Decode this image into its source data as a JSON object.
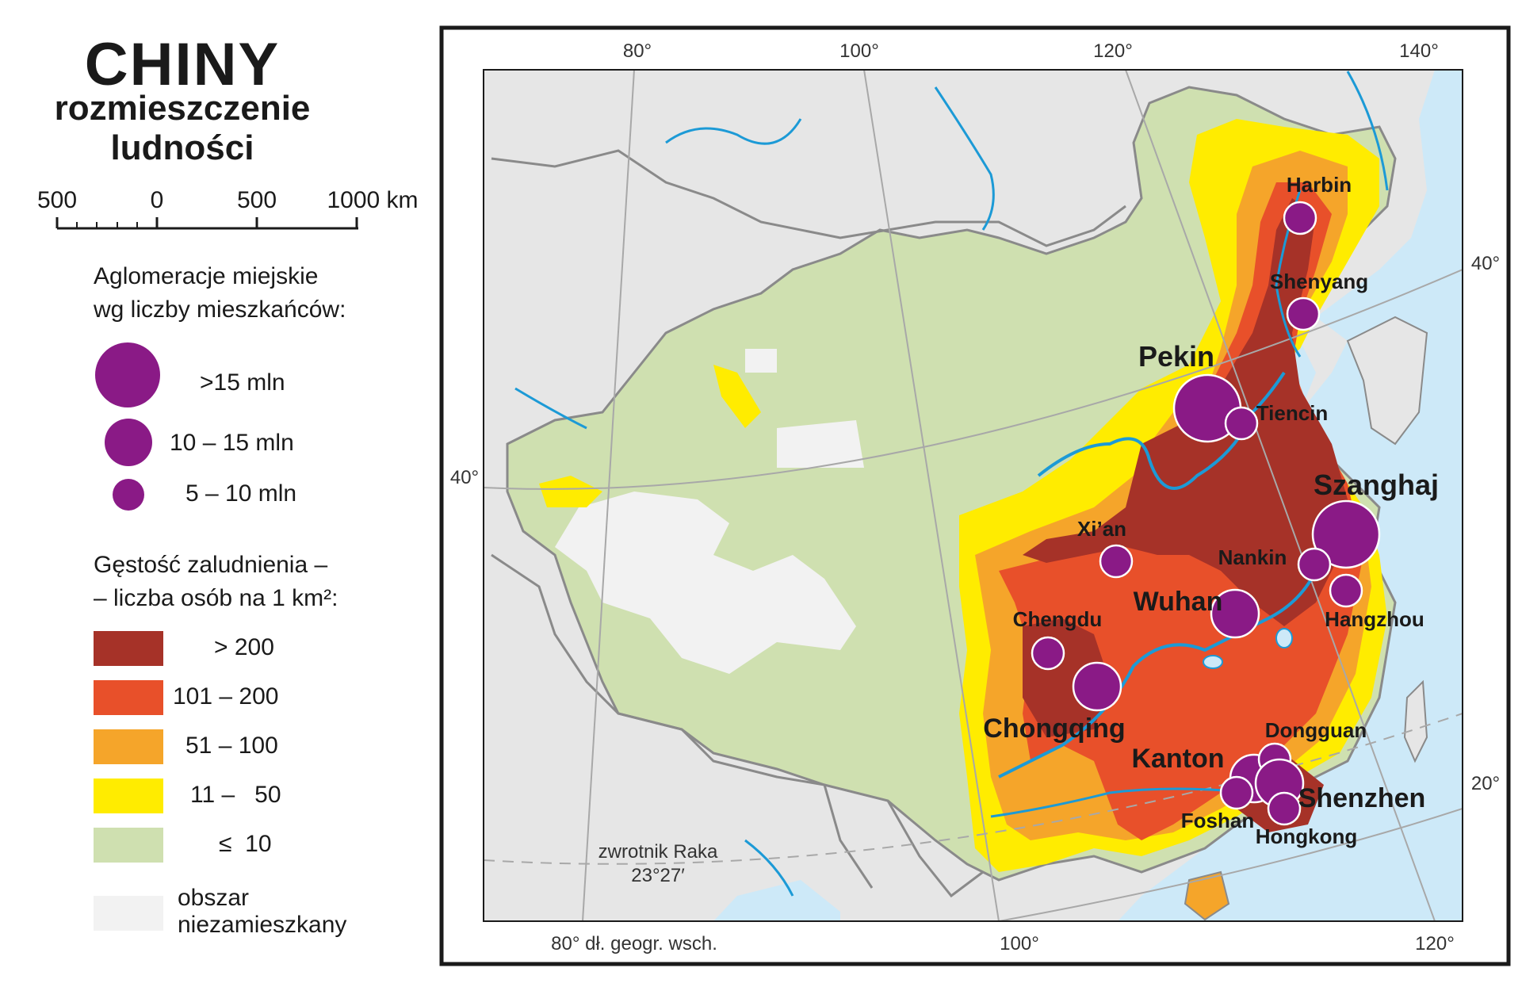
{
  "title": {
    "main": "CHINY",
    "subtitle_line1": "rozmieszczenie",
    "subtitle_line2": "ludności"
  },
  "scale": {
    "labels": [
      "500",
      "0",
      "500",
      "1000 km"
    ]
  },
  "agglomerations_legend": {
    "heading_line1": "Aglomeracje miejskie",
    "heading_line2": "wg liczby mieszkańców:",
    "items": [
      {
        "label": ">15 mln"
      },
      {
        "label": "10 – 15 mln"
      },
      {
        "label": "5 – 10 mln"
      }
    ],
    "color": "#8a1a86"
  },
  "density_legend": {
    "heading_line1": "Gęstość zaludnienia –",
    "heading_line2": "– liczba osób na 1 km²:",
    "items": [
      {
        "label": "> 200",
        "color": "#a63228"
      },
      {
        "label": "101 – 200",
        "color": "#e8502a"
      },
      {
        "label": "51 – 100",
        "color": "#f5a52a"
      },
      {
        "label": "11 –   50",
        "color": "#ffec00"
      },
      {
        "label": "≤  10",
        "color": "#cfe0b0"
      }
    ],
    "uninhabited": {
      "line1": "obszar",
      "line2": "niezamieszkany",
      "color": "#f2f2f2"
    }
  },
  "graticule": {
    "top": [
      "80°",
      "100°",
      "120°",
      "140°"
    ],
    "bottom": [
      "80° dł. geogr. wsch.",
      "100°",
      "120°"
    ],
    "left": [
      "40°"
    ],
    "right": [
      "40°",
      "20°"
    ]
  },
  "tropic": {
    "line1": "zwrotnik Raka",
    "line2": "23°27′"
  },
  "cities": [
    {
      "name": "Harbin"
    },
    {
      "name": "Shenyang"
    },
    {
      "name": "Pekin"
    },
    {
      "name": "Tiencin"
    },
    {
      "name": "Szanghaj"
    },
    {
      "name": "Nankin"
    },
    {
      "name": "Hangzhou"
    },
    {
      "name": "Xi’an"
    },
    {
      "name": "Wuhan"
    },
    {
      "name": "Chengdu"
    },
    {
      "name": "Chongqing"
    },
    {
      "name": "Dongguan"
    },
    {
      "name": "Kanton"
    },
    {
      "name": "Shenzhen"
    },
    {
      "name": "Foshan"
    },
    {
      "name": "Hongkong"
    }
  ],
  "colors": {
    "water": "#cde9f8",
    "river": "#1c9ad6",
    "land_outside": "#e6e6e6",
    "border": "#8a8a8a"
  }
}
